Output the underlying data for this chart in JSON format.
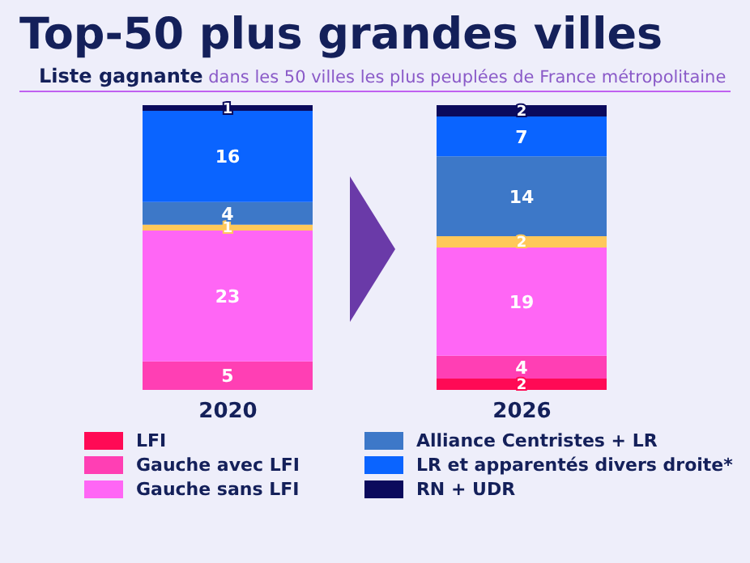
{
  "chart_data": {
    "type": "bar",
    "title": "Top-50 plus grandes villes",
    "subtitle": "Liste gagnante dans les 50 villes les plus peuplées de France métropolitaine",
    "categories": [
      "2020",
      "2026"
    ],
    "stacked": true,
    "legend": "bottom",
    "grid": false,
    "series": [
      {
        "name": "LFI",
        "color": "#ff0a55",
        "values": [
          0,
          2
        ],
        "value_labels": [
          null,
          "2"
        ]
      },
      {
        "name": "Gauche avec LFI",
        "color": "#ff3fb4",
        "values": [
          5,
          4
        ],
        "value_labels": [
          "5",
          "4"
        ]
      },
      {
        "name": "Gauche sans LFI",
        "color": "#ff66f5",
        "values": [
          23,
          19
        ],
        "value_labels": [
          "23",
          "19"
        ]
      },
      {
        "color": "#ffc85a",
        "values": [
          1,
          2
        ],
        "value_labels": [
          "1",
          "2"
        ]
      },
      {
        "name": "Alliance Centristes + LR",
        "color": "#3d78c8",
        "values": [
          4,
          14
        ],
        "value_labels": [
          "4",
          "14"
        ]
      },
      {
        "name": "LR et apparentés divers droite*",
        "color": "#0a64ff",
        "values": [
          16,
          7
        ],
        "value_labels": [
          "16",
          "7"
        ]
      },
      {
        "name": "RN + UDR",
        "color": "#0b0a5c",
        "values": [
          1,
          2
        ],
        "value_labels": [
          "1",
          "2"
        ]
      }
    ]
  }
}
